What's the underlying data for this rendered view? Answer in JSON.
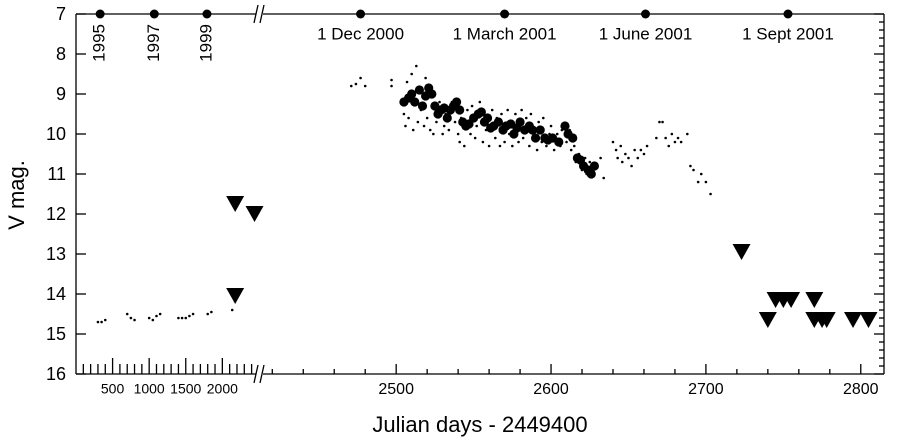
{
  "chart_data": {
    "type": "scatter",
    "xlabel": "Julian days - 2449400",
    "ylabel": "V mag.",
    "ylim": [
      7,
      16
    ],
    "y_inverted": true,
    "yticks": [
      7,
      8,
      9,
      10,
      11,
      12,
      13,
      14,
      15,
      16
    ],
    "y_minor_ticks": [
      7.2,
      7.4,
      7.6,
      7.8,
      8.2,
      8.4,
      8.6,
      8.8,
      9.2,
      9.4,
      9.6,
      9.8,
      10.2,
      10.4,
      10.6,
      10.8,
      11.2,
      11.4,
      11.6,
      11.8,
      12.2,
      12.4,
      12.6,
      12.8,
      13.2,
      13.4,
      13.6,
      13.8,
      14.2,
      14.4,
      14.6,
      14.8,
      15.2,
      15.4,
      15.6,
      15.8
    ],
    "x_segments": [
      {
        "xlim": [
          0,
          2460
        ],
        "xticks": [
          500,
          1000,
          1500,
          2000
        ],
        "x_minor_ticks": [
          100,
          200,
          300,
          400,
          600,
          700,
          800,
          900,
          1100,
          1200,
          1300,
          1400,
          1600,
          1700,
          1800,
          1900,
          2100,
          2200,
          2300,
          2400
        ]
      },
      {
        "xlim": [
          2414,
          2815
        ],
        "xticks": [
          2500,
          2600,
          2700,
          2800
        ],
        "x_minor_ticks": [
          2420,
          2440,
          2460,
          2480,
          2520,
          2540,
          2560,
          2580,
          2620,
          2640,
          2660,
          2680,
          2720,
          2740,
          2760,
          2780
        ]
      }
    ],
    "top_annotations": [
      {
        "x": 330,
        "label": "1995"
      },
      {
        "x": 1070,
        "label": "1997"
      },
      {
        "x": 1790,
        "label": "1999"
      },
      {
        "x": 2477,
        "label": "1 Dec 2000"
      },
      {
        "x": 2570,
        "label": "1 March 2001"
      },
      {
        "x": 2661,
        "label": "1 June 2001"
      },
      {
        "x": 2753,
        "label": "1 Sept 2001"
      }
    ],
    "series": [
      {
        "marker": "dot",
        "color": "#000000",
        "x": [
          300,
          350,
          400,
          700,
          750,
          800,
          1000,
          1050,
          1100,
          1150,
          1400,
          1450,
          1500,
          1550,
          1600,
          1800,
          1850,
          2135,
          2471,
          2474,
          2477,
          2480,
          2497,
          2497,
          2505,
          2506,
          2507,
          2508,
          2510,
          2511,
          2513,
          2514,
          2516,
          2518,
          2519,
          2520,
          2522,
          2524,
          2525,
          2526,
          2528,
          2530,
          2531,
          2532,
          2534,
          2536,
          2538,
          2540,
          2541,
          2542,
          2544,
          2546,
          2548,
          2549,
          2551,
          2552,
          2554,
          2556,
          2558,
          2560,
          2562,
          2564,
          2565,
          2567,
          2568,
          2570,
          2572,
          2573,
          2575,
          2577,
          2579,
          2581,
          2582,
          2584,
          2586,
          2587,
          2589,
          2591,
          2592,
          2594,
          2595,
          2597,
          2599,
          2600,
          2602,
          2604,
          2606,
          2607,
          2610,
          2612,
          2613,
          2615,
          2616,
          2618,
          2620,
          2622,
          2623,
          2625,
          2627,
          2629,
          2632,
          2634,
          2640,
          2642,
          2643,
          2645,
          2646,
          2648,
          2650,
          2652,
          2654,
          2656,
          2658,
          2660,
          2662,
          2668,
          2670,
          2672,
          2674,
          2676,
          2678,
          2680,
          2682,
          2684,
          2688,
          2690,
          2692,
          2695,
          2697,
          2700,
          2703
        ],
        "values": [
          14.7,
          14.7,
          14.65,
          14.5,
          14.6,
          14.65,
          14.6,
          14.65,
          14.55,
          14.5,
          14.6,
          14.6,
          14.6,
          14.55,
          14.5,
          14.5,
          14.45,
          14.4,
          8.8,
          8.75,
          8.6,
          8.8,
          8.65,
          8.8,
          9.5,
          9.8,
          8.7,
          9.6,
          8.5,
          9.9,
          8.3,
          9.7,
          9.4,
          9.8,
          8.6,
          9.6,
          9.9,
          10.0,
          9.0,
          9.7,
          9.2,
          10.0,
          9.8,
          9.5,
          9.9,
          9.2,
          9.7,
          10.0,
          10.2,
          9.6,
          10.3,
          9.4,
          10.0,
          9.3,
          10.1,
          9.8,
          9.2,
          10.2,
          9.9,
          10.3,
          9.4,
          10.1,
          9.6,
          10.3,
          9.5,
          10.2,
          9.4,
          10.0,
          10.3,
          9.5,
          10.2,
          9.4,
          10.1,
          9.6,
          10.3,
          9.5,
          10.0,
          10.4,
          9.7,
          10.2,
          9.6,
          10.3,
          10.0,
          9.8,
          10.4,
          10.0,
          10.3,
          9.9,
          10.2,
          9.9,
          10.4,
          10.3,
          10.7,
          10.5,
          10.9,
          10.6,
          11.0,
          10.7,
          10.9,
          10.8,
          10.6,
          11.1,
          10.2,
          10.4,
          10.6,
          10.3,
          10.7,
          10.5,
          10.6,
          10.8,
          10.4,
          10.6,
          10.4,
          10.5,
          10.3,
          10.1,
          9.7,
          9.7,
          10.1,
          10.3,
          10.0,
          10.2,
          10.1,
          10.2,
          10.0,
          10.8,
          10.9,
          11.2,
          11.0,
          11.2,
          11.5
        ]
      },
      {
        "marker": "circle",
        "color": "#000000",
        "x": [
          2505,
          2508,
          2510,
          2512,
          2515,
          2517,
          2519,
          2521,
          2523,
          2525,
          2527,
          2529,
          2531,
          2533,
          2535,
          2537,
          2539,
          2541,
          2543,
          2545,
          2547,
          2550,
          2553,
          2555,
          2557,
          2559,
          2561,
          2563,
          2566,
          2569,
          2571,
          2574,
          2576,
          2578,
          2580,
          2583,
          2586,
          2588,
          2590,
          2593,
          2596,
          2598,
          2601,
          2605,
          2609,
          2611,
          2614,
          2617,
          2619,
          2621,
          2624,
          2626,
          2628
        ],
        "values": [
          9.2,
          9.1,
          9.0,
          9.2,
          8.9,
          9.3,
          9.05,
          8.85,
          9.0,
          9.3,
          9.5,
          9.4,
          9.35,
          9.6,
          9.4,
          9.3,
          9.2,
          9.4,
          9.7,
          9.8,
          9.75,
          9.6,
          9.5,
          9.45,
          9.7,
          9.6,
          9.85,
          9.8,
          9.7,
          9.9,
          9.8,
          9.75,
          10.0,
          9.85,
          9.7,
          9.9,
          9.8,
          9.9,
          10.1,
          9.9,
          10.1,
          10.15,
          10.1,
          10.2,
          9.8,
          10.0,
          10.1,
          10.6,
          10.65,
          10.8,
          10.9,
          11.0,
          10.8
        ]
      },
      {
        "marker": "triangle",
        "color": "#000000",
        "x": [
          2175,
          2440,
          2175,
          2723,
          2740,
          2745,
          2750,
          2755,
          2770,
          2770,
          2775,
          2778,
          2795,
          2805
        ],
        "values": [
          11.75,
          12.0,
          14.05,
          12.95,
          14.65,
          14.15,
          14.15,
          14.15,
          14.15,
          14.65,
          14.65,
          14.65,
          14.65,
          14.65
        ]
      }
    ]
  }
}
